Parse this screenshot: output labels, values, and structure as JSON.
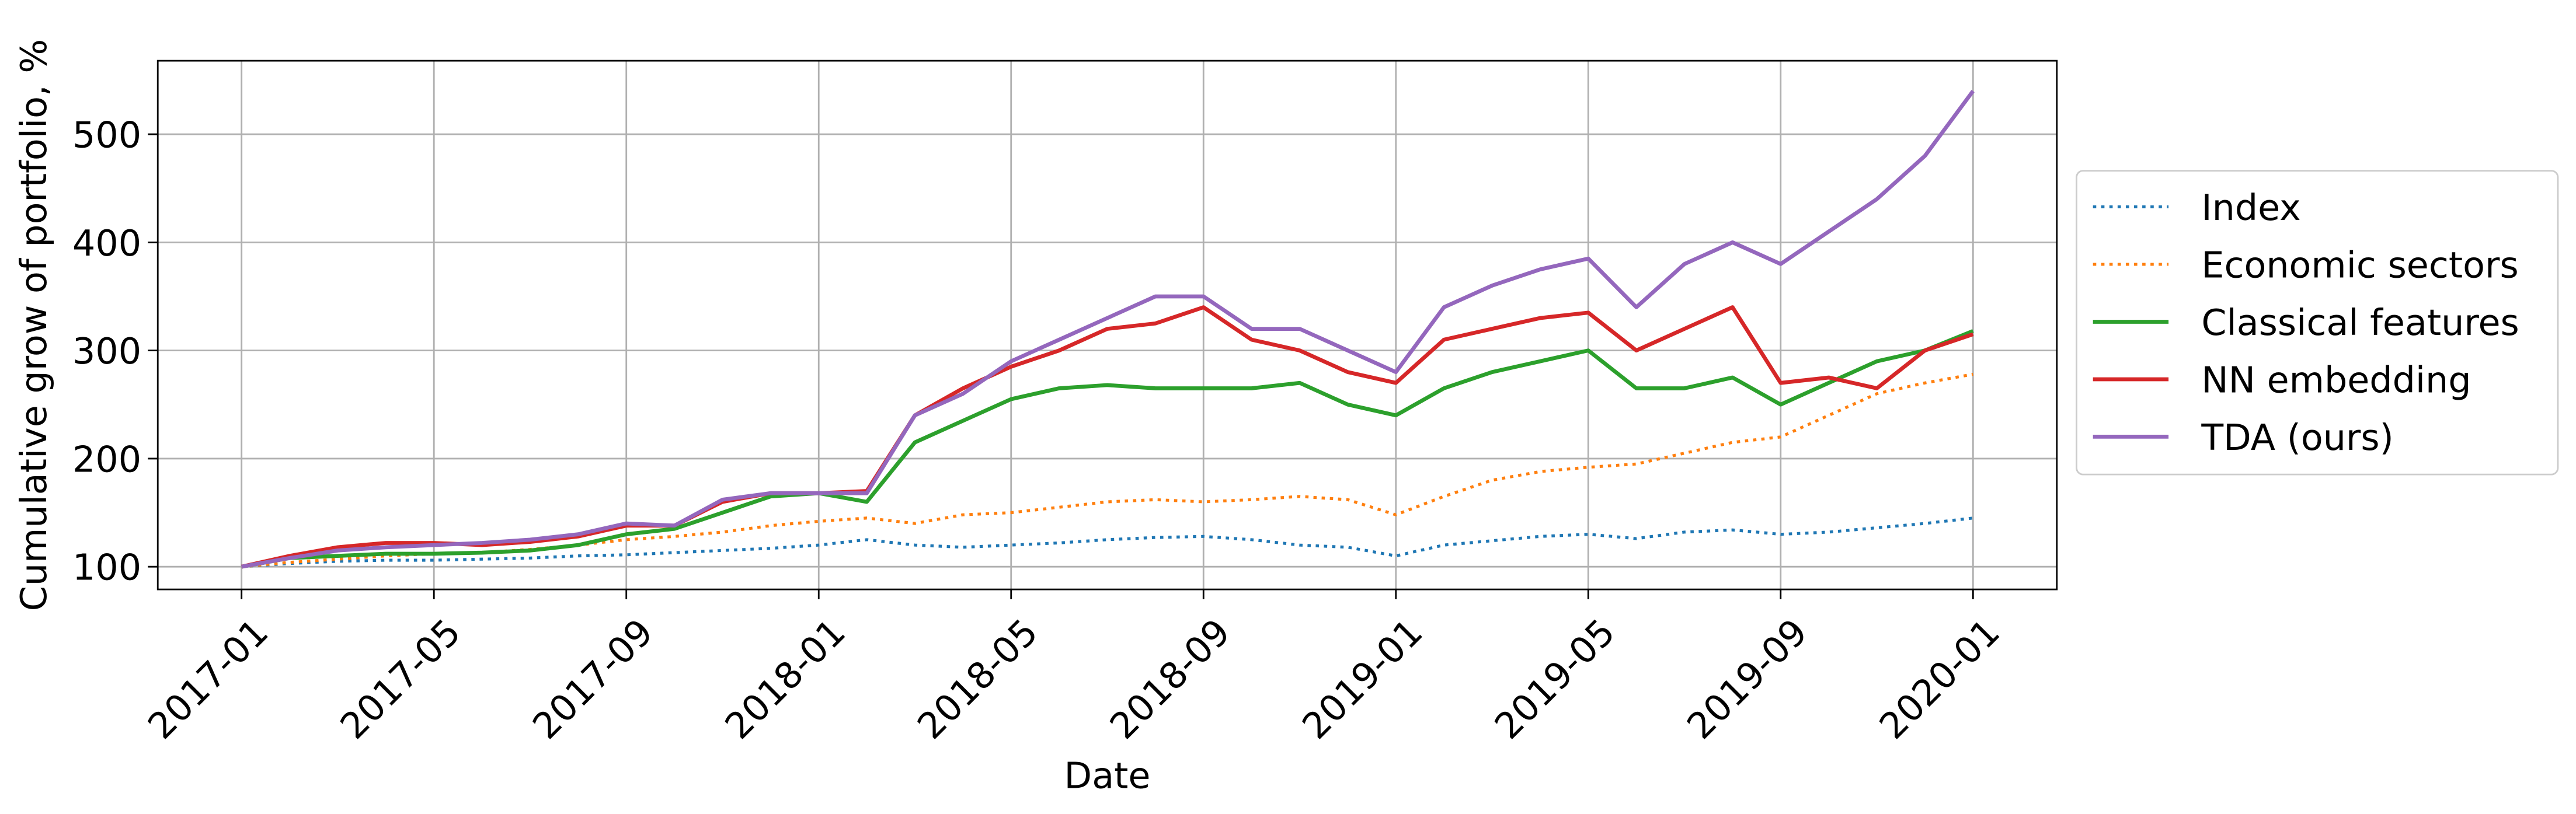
{
  "chart_data": {
    "type": "line",
    "x_label": "Date",
    "y_label": "Cumulative grow of portfolio, %",
    "x": [
      "2017-01",
      "2017-02",
      "2017-03",
      "2017-04",
      "2017-05",
      "2017-06",
      "2017-07",
      "2017-08",
      "2017-09",
      "2017-10",
      "2017-11",
      "2017-12",
      "2018-01",
      "2018-02",
      "2018-03",
      "2018-04",
      "2018-05",
      "2018-06",
      "2018-07",
      "2018-08",
      "2018-09",
      "2018-10",
      "2018-11",
      "2018-12",
      "2019-01",
      "2019-02",
      "2019-03",
      "2019-04",
      "2019-05",
      "2019-06",
      "2019-07",
      "2019-08",
      "2019-09",
      "2019-10",
      "2019-11",
      "2019-12",
      "2020-01"
    ],
    "xticks": [
      "2017-01",
      "2017-05",
      "2017-09",
      "2018-01",
      "2018-05",
      "2018-09",
      "2019-01",
      "2019-05",
      "2019-09",
      "2020-01"
    ],
    "ylim": [
      79,
      568
    ],
    "yticks": [
      100,
      200,
      300,
      400,
      500
    ],
    "grid": true,
    "legend": "outside right",
    "series": [
      {
        "name": "Index",
        "color": "#1f77b4",
        "style": "dotted",
        "values": [
          100,
          103,
          105,
          106,
          106,
          107,
          108,
          110,
          111,
          113,
          115,
          117,
          120,
          125,
          120,
          118,
          120,
          122,
          125,
          127,
          128,
          125,
          120,
          118,
          110,
          120,
          124,
          128,
          130,
          126,
          132,
          134,
          130,
          132,
          136,
          140,
          145
        ]
      },
      {
        "name": "Economic sectors",
        "color": "#ff7f0e",
        "style": "dotted",
        "values": [
          100,
          104,
          107,
          110,
          112,
          113,
          116,
          120,
          125,
          128,
          132,
          138,
          142,
          145,
          140,
          148,
          150,
          155,
          160,
          162,
          160,
          162,
          165,
          162,
          148,
          165,
          180,
          188,
          192,
          195,
          205,
          215,
          220,
          240,
          260,
          270,
          278
        ]
      },
      {
        "name": "Classical features",
        "color": "#2ca02c",
        "style": "solid",
        "values": [
          100,
          108,
          110,
          112,
          112,
          113,
          115,
          120,
          130,
          135,
          150,
          165,
          168,
          160,
          215,
          235,
          255,
          265,
          268,
          265,
          265,
          265,
          270,
          250,
          240,
          265,
          280,
          290,
          300,
          265,
          265,
          275,
          250,
          270,
          290,
          300,
          318
        ]
      },
      {
        "name": "NN embedding",
        "color": "#d62728",
        "style": "solid",
        "values": [
          100,
          110,
          118,
          122,
          122,
          120,
          123,
          128,
          138,
          138,
          160,
          168,
          168,
          170,
          240,
          265,
          285,
          300,
          320,
          325,
          340,
          310,
          300,
          280,
          270,
          310,
          320,
          330,
          335,
          300,
          320,
          340,
          270,
          275,
          265,
          300,
          315
        ]
      },
      {
        "name": "TDA (ours)",
        "color": "#9467bd",
        "style": "solid",
        "values": [
          100,
          108,
          115,
          118,
          120,
          122,
          125,
          130,
          140,
          138,
          162,
          168,
          168,
          168,
          240,
          260,
          290,
          310,
          330,
          350,
          350,
          320,
          320,
          300,
          280,
          340,
          360,
          375,
          385,
          340,
          380,
          400,
          380,
          410,
          440,
          480,
          540
        ]
      }
    ]
  }
}
